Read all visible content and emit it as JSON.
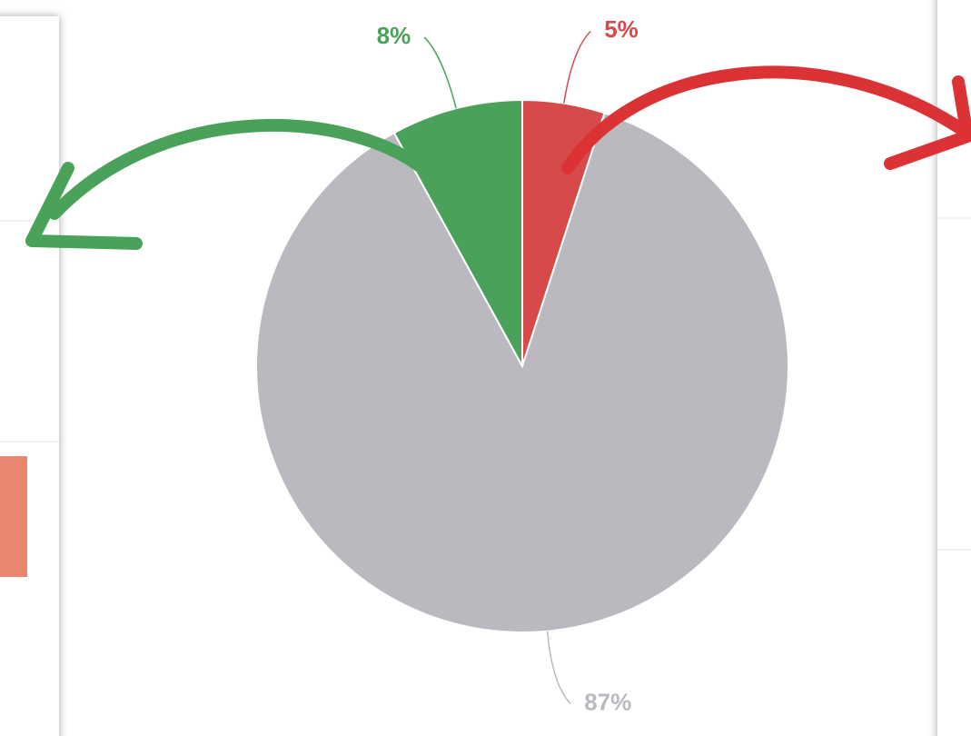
{
  "chart_data": {
    "type": "pie",
    "values": [
      5,
      87,
      8
    ],
    "value_labels": [
      "5%",
      "87%",
      "8%"
    ],
    "colors": [
      "#d64a4a",
      "#bab9c0",
      "#4aa25a"
    ]
  }
}
